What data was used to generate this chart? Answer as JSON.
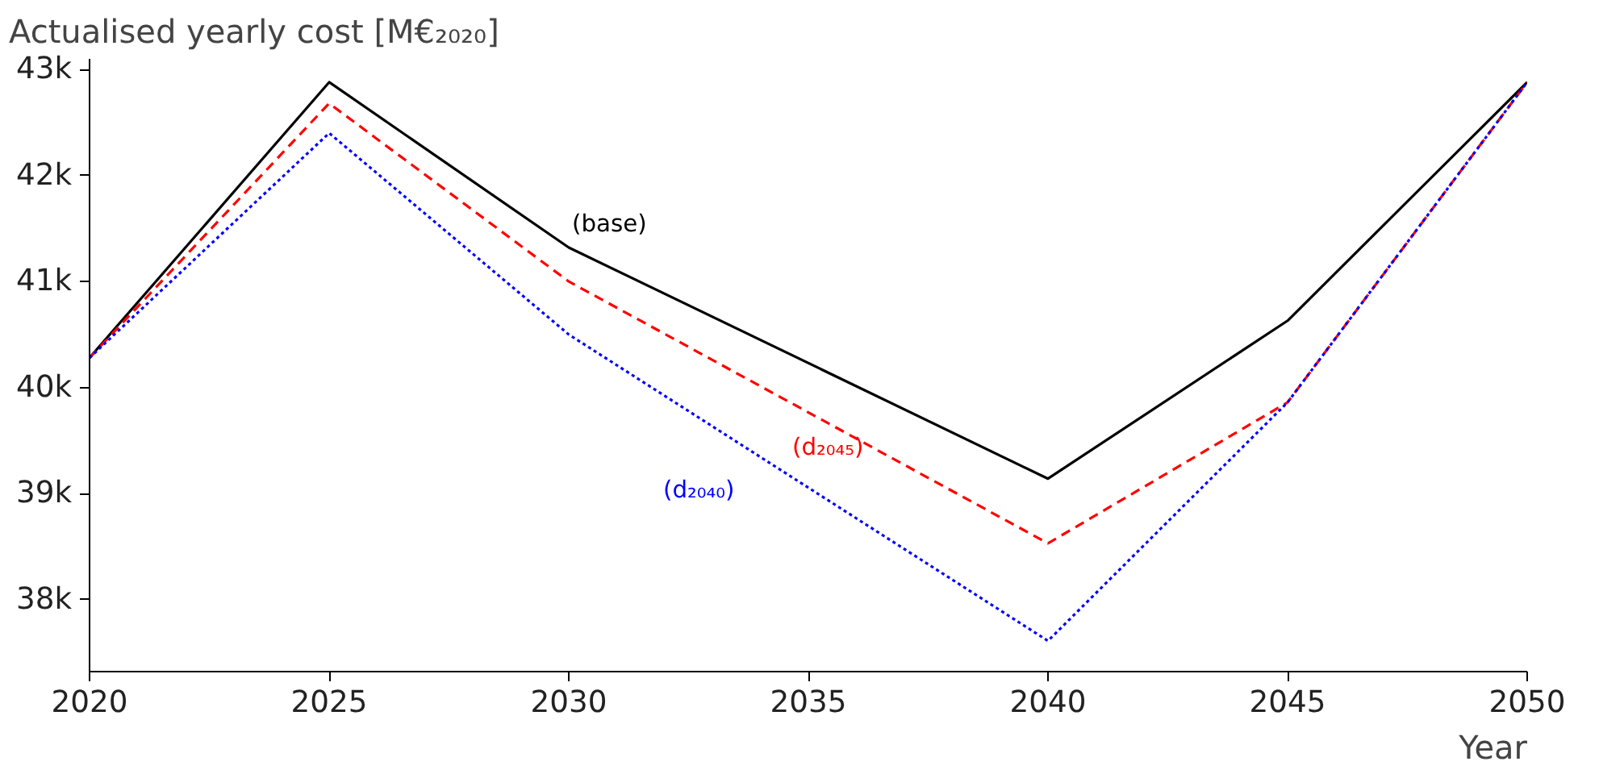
{
  "chart_data": {
    "type": "line",
    "ylabel": "Actualised yearly cost [M€₂₀₂₀]",
    "xlabel": "Year",
    "x": [
      2020,
      2025,
      2030,
      2040,
      2045,
      2050
    ],
    "series": [
      {
        "name": "(base)",
        "color": "#000000",
        "line_style": "solid",
        "values": [
          40280,
          42880,
          41320,
          39140,
          40630,
          42880
        ]
      },
      {
        "name": "(d₂₀₄₅)",
        "color": "#ff0000",
        "line_style": "dashed",
        "values": [
          40280,
          42680,
          41000,
          38530,
          39860,
          42880
        ]
      },
      {
        "name": "(d₂₀₄₀)",
        "color": "#0000ff",
        "line_style": "dotted",
        "values": [
          40280,
          42400,
          40500,
          37610,
          39860,
          42880
        ]
      }
    ],
    "xlim": [
      2020,
      2050
    ],
    "ylim": [
      37320,
      43100
    ],
    "xticks": [
      2020,
      2025,
      2030,
      2035,
      2040,
      2045,
      2050
    ],
    "yticks": [
      {
        "value": 38000,
        "label": "38k"
      },
      {
        "value": 39000,
        "label": "39k"
      },
      {
        "value": 40000,
        "label": "40k"
      },
      {
        "value": 41000,
        "label": "41k"
      },
      {
        "value": 42000,
        "label": "42k"
      },
      {
        "value": 43000,
        "label": "43k"
      }
    ],
    "grid": false,
    "marker": "none"
  }
}
